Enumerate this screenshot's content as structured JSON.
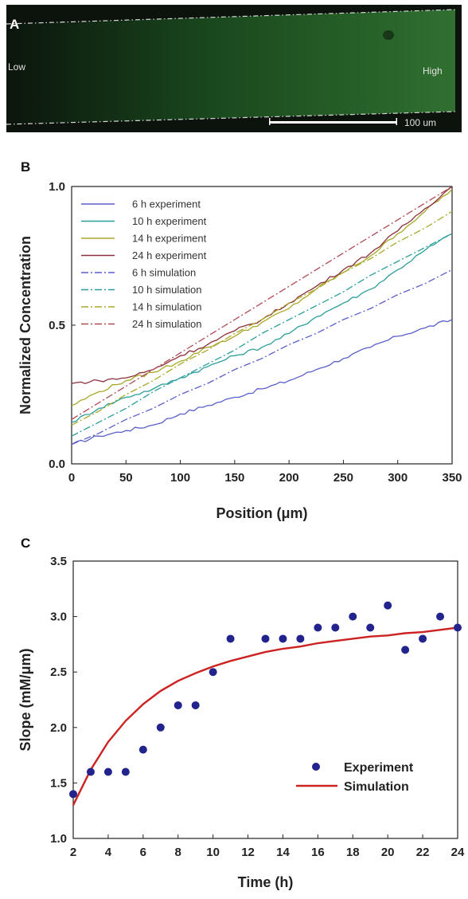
{
  "panel_a": {
    "label": "A",
    "low_label": "Low",
    "high_label": "High",
    "scale_bar_label": "100 um",
    "colors": {
      "background": "#0c120c",
      "glow": "#1c5f22",
      "boundary": "#d8d8d8"
    }
  },
  "chart_data": [
    {
      "panel": "B",
      "type": "line",
      "xlabel": "Position (μm)",
      "ylabel": "Normalized Concentration",
      "xlim": [
        0,
        350
      ],
      "ylim": [
        0,
        1
      ],
      "x_ticks": [
        "0",
        "50",
        "100",
        "150",
        "200",
        "250",
        "300",
        "350"
      ],
      "y_ticks": [
        "0.0",
        "0.5",
        "1.0"
      ],
      "x_tick_values": [
        0,
        50,
        100,
        150,
        200,
        250,
        300,
        350
      ],
      "y_tick_values": [
        0,
        0.5,
        1.0
      ],
      "legend_position": "top-left",
      "x": [
        0,
        25,
        50,
        75,
        100,
        125,
        150,
        175,
        200,
        225,
        250,
        275,
        300,
        325,
        350
      ],
      "series": [
        {
          "name": "6 h experiment",
          "style": "solid",
          "color": "#5a5fc8",
          "values": [
            0.07,
            0.1,
            0.12,
            0.14,
            0.18,
            0.21,
            0.24,
            0.27,
            0.3,
            0.34,
            0.38,
            0.42,
            0.46,
            0.49,
            0.52
          ]
        },
        {
          "name": "10 h experiment",
          "style": "solid",
          "color": "#2a9e9a",
          "values": [
            0.15,
            0.2,
            0.24,
            0.27,
            0.31,
            0.35,
            0.39,
            0.42,
            0.47,
            0.53,
            0.58,
            0.63,
            0.7,
            0.77,
            0.83
          ]
        },
        {
          "name": "14 h experiment",
          "style": "solid",
          "color": "#a8a82a",
          "values": [
            0.21,
            0.26,
            0.3,
            0.33,
            0.37,
            0.42,
            0.46,
            0.51,
            0.56,
            0.63,
            0.69,
            0.75,
            0.83,
            0.91,
            0.99
          ]
        },
        {
          "name": "24 h experiment",
          "style": "solid",
          "color": "#8b2f3a",
          "values": [
            0.29,
            0.3,
            0.31,
            0.34,
            0.39,
            0.43,
            0.48,
            0.52,
            0.58,
            0.64,
            0.7,
            0.76,
            0.84,
            0.92,
            1.0
          ]
        },
        {
          "name": "6 h simulation",
          "style": "dashdot",
          "color": "#5a5fc8",
          "values": [
            0.07,
            0.11,
            0.16,
            0.2,
            0.25,
            0.29,
            0.34,
            0.38,
            0.43,
            0.47,
            0.52,
            0.56,
            0.61,
            0.65,
            0.7
          ]
        },
        {
          "name": "10 h simulation",
          "style": "dashdot",
          "color": "#2a9e9a",
          "values": [
            0.1,
            0.15,
            0.2,
            0.26,
            0.31,
            0.36,
            0.41,
            0.47,
            0.52,
            0.57,
            0.62,
            0.68,
            0.73,
            0.78,
            0.83
          ]
        },
        {
          "name": "14 h simulation",
          "style": "dashdot",
          "color": "#a8a82a",
          "values": [
            0.14,
            0.19,
            0.25,
            0.3,
            0.36,
            0.41,
            0.47,
            0.52,
            0.58,
            0.63,
            0.69,
            0.74,
            0.8,
            0.85,
            0.91
          ]
        },
        {
          "name": "24 h simulation",
          "style": "dashdot",
          "color": "#b04a55",
          "values": [
            0.16,
            0.22,
            0.28,
            0.34,
            0.4,
            0.46,
            0.52,
            0.58,
            0.64,
            0.7,
            0.76,
            0.82,
            0.88,
            0.94,
            1.0
          ]
        }
      ]
    },
    {
      "panel": "C",
      "type": "scatter",
      "xlabel": "Time (h)",
      "ylabel": "Slope (mM/μm)",
      "xlim": [
        2,
        24
      ],
      "ylim": [
        1.0,
        3.5
      ],
      "x_ticks": [
        "2",
        "4",
        "6",
        "8",
        "10",
        "12",
        "14",
        "16",
        "18",
        "20",
        "22",
        "24"
      ],
      "y_ticks": [
        "1.0",
        "1.5",
        "2.0",
        "2.5",
        "3.0",
        "3.5"
      ],
      "x_tick_values": [
        2,
        4,
        6,
        8,
        10,
        12,
        14,
        16,
        18,
        20,
        22,
        24
      ],
      "y_tick_values": [
        1.0,
        1.5,
        2.0,
        2.5,
        3.0,
        3.5
      ],
      "legend_position": "bottom-right",
      "series": [
        {
          "name": "Experiment",
          "kind": "points",
          "color": "#23238e",
          "x": [
            2,
            3,
            4,
            5,
            6,
            7,
            8,
            9,
            10,
            11,
            13,
            14,
            15,
            16,
            17,
            18,
            19,
            20,
            21,
            22,
            23,
            24
          ],
          "values": [
            1.4,
            1.6,
            1.6,
            1.6,
            1.8,
            2.0,
            2.2,
            2.2,
            2.5,
            2.8,
            2.8,
            2.8,
            2.8,
            2.9,
            2.9,
            3.0,
            2.9,
            3.1,
            2.7,
            2.8,
            3.0,
            2.9
          ]
        },
        {
          "name": "Simulation",
          "kind": "line",
          "color": "#cc2222",
          "x": [
            2,
            3,
            4,
            5,
            6,
            7,
            8,
            9,
            10,
            11,
            12,
            13,
            14,
            15,
            16,
            17,
            18,
            19,
            20,
            21,
            22,
            23,
            24
          ],
          "values": [
            1.3,
            1.62,
            1.87,
            2.06,
            2.21,
            2.33,
            2.42,
            2.49,
            2.55,
            2.6,
            2.64,
            2.68,
            2.71,
            2.73,
            2.76,
            2.78,
            2.8,
            2.82,
            2.83,
            2.85,
            2.86,
            2.88,
            2.9
          ]
        }
      ]
    }
  ]
}
